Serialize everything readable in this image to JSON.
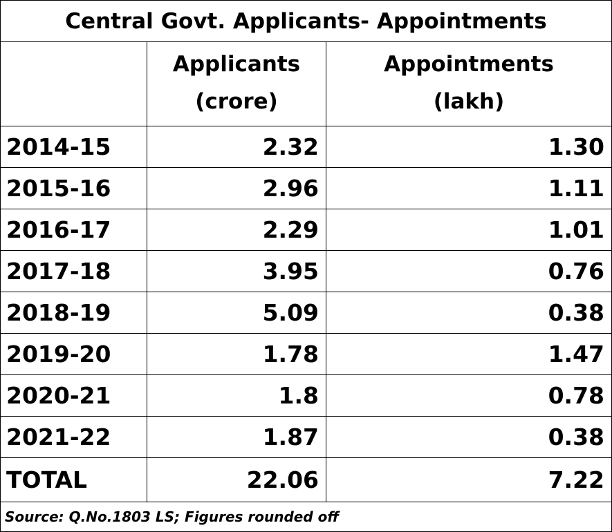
{
  "chart_data": {
    "type": "table",
    "title": "Central Govt. Applicants- Appointments",
    "columns": [
      {
        "label_line1": "",
        "label_line2": ""
      },
      {
        "label_line1": "Applicants",
        "label_line2": "(crore)"
      },
      {
        "label_line1": "Appointments",
        "label_line2": "(lakh)"
      }
    ],
    "rows": [
      {
        "year": "2014-15",
        "applicants": "2.32",
        "appointments": "1.30"
      },
      {
        "year": "2015-16",
        "applicants": "2.96",
        "appointments": "1.11"
      },
      {
        "year": "2016-17",
        "applicants": "2.29",
        "appointments": "1.01"
      },
      {
        "year": "2017-18",
        "applicants": "3.95",
        "appointments": "0.76"
      },
      {
        "year": "2018-19",
        "applicants": "5.09",
        "appointments": "0.38"
      },
      {
        "year": "2019-20",
        "applicants": "1.78",
        "appointments": "1.47"
      },
      {
        "year": "2020-21",
        "applicants": "1.8",
        "appointments": "0.78"
      },
      {
        "year": "2021-22",
        "applicants": "1.87",
        "appointments": "0.38"
      }
    ],
    "total": {
      "label": "TOTAL",
      "applicants": "22.06",
      "appointments": "7.22"
    },
    "source": "Source: Q.No.1803 LS; Figures rounded off"
  }
}
